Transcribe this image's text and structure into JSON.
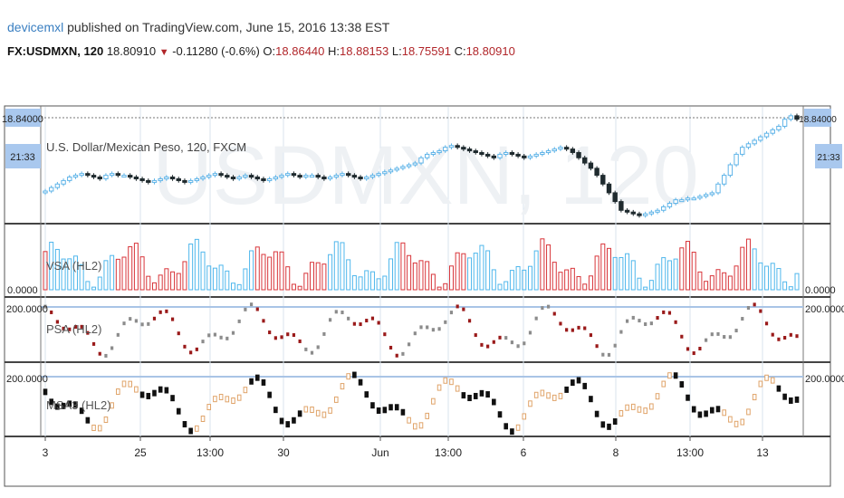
{
  "header": {
    "author": "devicemxl",
    "published": "published on TradingView.com, June 15, 2016 13:38 EST",
    "symbol": "FX:USDMXN, 120",
    "last": "18.80910",
    "change": "-0.11280 (-0.6%)",
    "o_label": "O:",
    "o": "18.86440",
    "h_label": "H:",
    "h": "18.88153",
    "l_label": "L:",
    "l": "18.75591",
    "c_label": "C:",
    "c": "18.80910"
  },
  "watermark": "USDMXN, 120",
  "colors": {
    "up": "#5fb4e8",
    "down": "#1f2a2e",
    "vsa_up": "#4fb7ec",
    "vsa_down": "#d8353a",
    "psa_up": "#8c8c8c",
    "psa_down": "#9a1a1a",
    "msa_up": "#e0a46a",
    "msa_down": "#111111",
    "level": "#a9c4e6",
    "grid": "#d8e3ee",
    "badge": "#a9c8ee"
  },
  "panes": {
    "price": {
      "title": "U.S. Dollar/Mexican Peso, 120, FXCM",
      "price_badge": "18.84000",
      "time_badge": "21:33"
    },
    "vsa": {
      "title": "VSA (HL2)",
      "zero_label": "0.0000"
    },
    "psa": {
      "title": "PSA (HL2)",
      "level_label": "200.0000"
    },
    "msa": {
      "title": "MSA3 (HL2)",
      "level_label": "200.0000"
    }
  },
  "chart_data": {
    "type": "candlestick",
    "x_ticks": [
      "3",
      "25",
      "13:00",
      "30",
      "Jun",
      "13:00",
      "6",
      "8",
      "13:00",
      "13"
    ],
    "price_series": [
      18.41,
      18.43,
      18.45,
      18.47,
      18.49,
      18.5,
      18.51,
      18.5,
      18.49,
      18.48,
      18.5,
      18.51,
      18.5,
      18.5,
      18.49,
      18.48,
      18.47,
      18.46,
      18.47,
      18.48,
      18.49,
      18.48,
      18.47,
      18.46,
      18.47,
      18.48,
      18.49,
      18.5,
      18.51,
      18.5,
      18.49,
      18.48,
      18.49,
      18.5,
      18.49,
      18.48,
      18.47,
      18.48,
      18.49,
      18.5,
      18.51,
      18.5,
      18.49,
      18.5,
      18.5,
      18.49,
      18.48,
      18.49,
      18.5,
      18.51,
      18.5,
      18.49,
      18.48,
      18.49,
      18.5,
      18.51,
      18.52,
      18.53,
      18.54,
      18.55,
      18.56,
      18.57,
      18.6,
      18.62,
      18.63,
      18.64,
      18.66,
      18.67,
      18.66,
      18.65,
      18.64,
      18.63,
      18.62,
      18.61,
      18.6,
      18.62,
      18.63,
      18.62,
      18.61,
      18.6,
      18.61,
      18.62,
      18.63,
      18.64,
      18.65,
      18.66,
      18.65,
      18.63,
      18.6,
      18.57,
      18.54,
      18.5,
      18.45,
      18.4,
      18.35,
      18.3,
      18.29,
      18.28,
      18.27,
      18.28,
      18.29,
      18.3,
      18.32,
      18.34,
      18.36,
      18.36,
      18.37,
      18.37,
      18.38,
      18.39,
      18.4,
      18.45,
      18.5,
      18.56,
      18.62,
      18.66,
      18.68,
      18.7,
      18.72,
      18.74,
      18.76,
      18.78,
      18.82,
      18.84,
      18.82
    ]
  }
}
